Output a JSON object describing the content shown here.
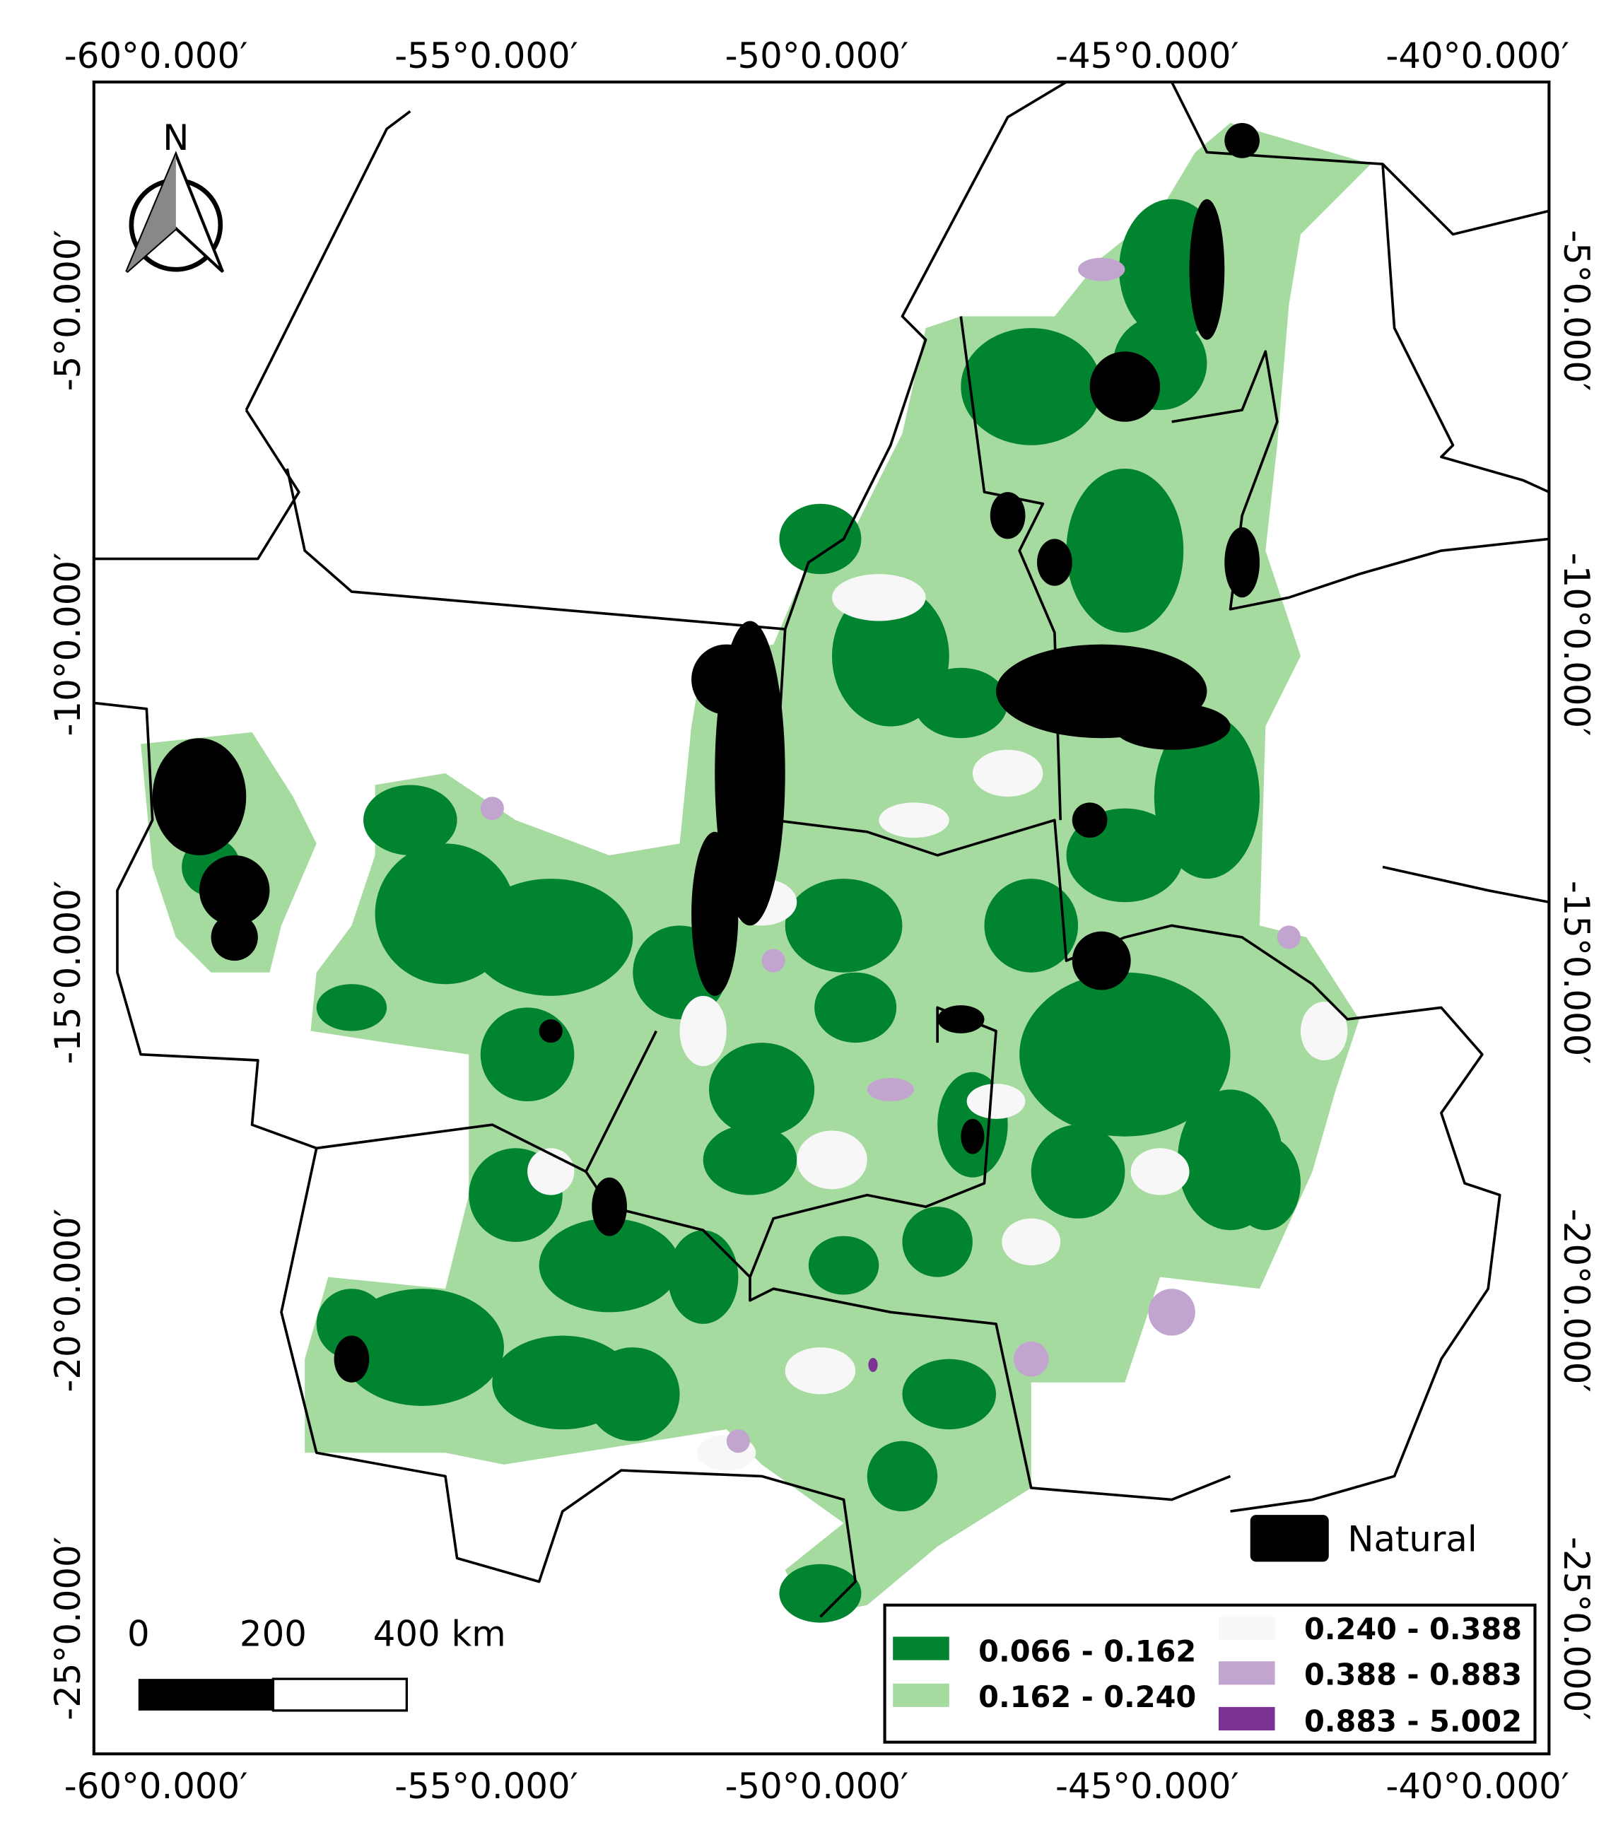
{
  "map": {
    "top_longitude_labels": [
      "-60°0.000′",
      "-55°0.000′",
      "-50°0.000′",
      "-45°0.000′",
      "-40°0.000′"
    ],
    "bottom_longitude_labels": [
      "-60°0.000′",
      "-55°0.000′",
      "-50°0.000′",
      "-45°0.000′",
      "-40°0.000′"
    ],
    "left_latitude_labels": [
      "-5°0.000′",
      "-10°0.000′",
      "-15°0.000′",
      "-20°0.000′",
      "-25°0.000′"
    ],
    "right_latitude_labels": [
      "-5°0.000′",
      "-10°0.000′",
      "-15°0.000′",
      "-20°0.000′",
      "-25°0.000′"
    ],
    "north_label": "N",
    "scale_bar_labels": [
      "0",
      "200",
      "400 km"
    ],
    "legend": {
      "natural": {
        "label": "Natural",
        "color": "#000000"
      },
      "classes": [
        {
          "label": "0.066 - 0.162",
          "color": "#00842f"
        },
        {
          "label": "0.162 - 0.240",
          "color": "#a6dba0"
        },
        {
          "label": "0.240 - 0.388",
          "color": "#f7f7f7"
        },
        {
          "label": "0.388 - 0.883",
          "color": "#c2a5cf"
        },
        {
          "label": "0.883 - 5.002",
          "color": "#7b3294"
        }
      ]
    }
  }
}
